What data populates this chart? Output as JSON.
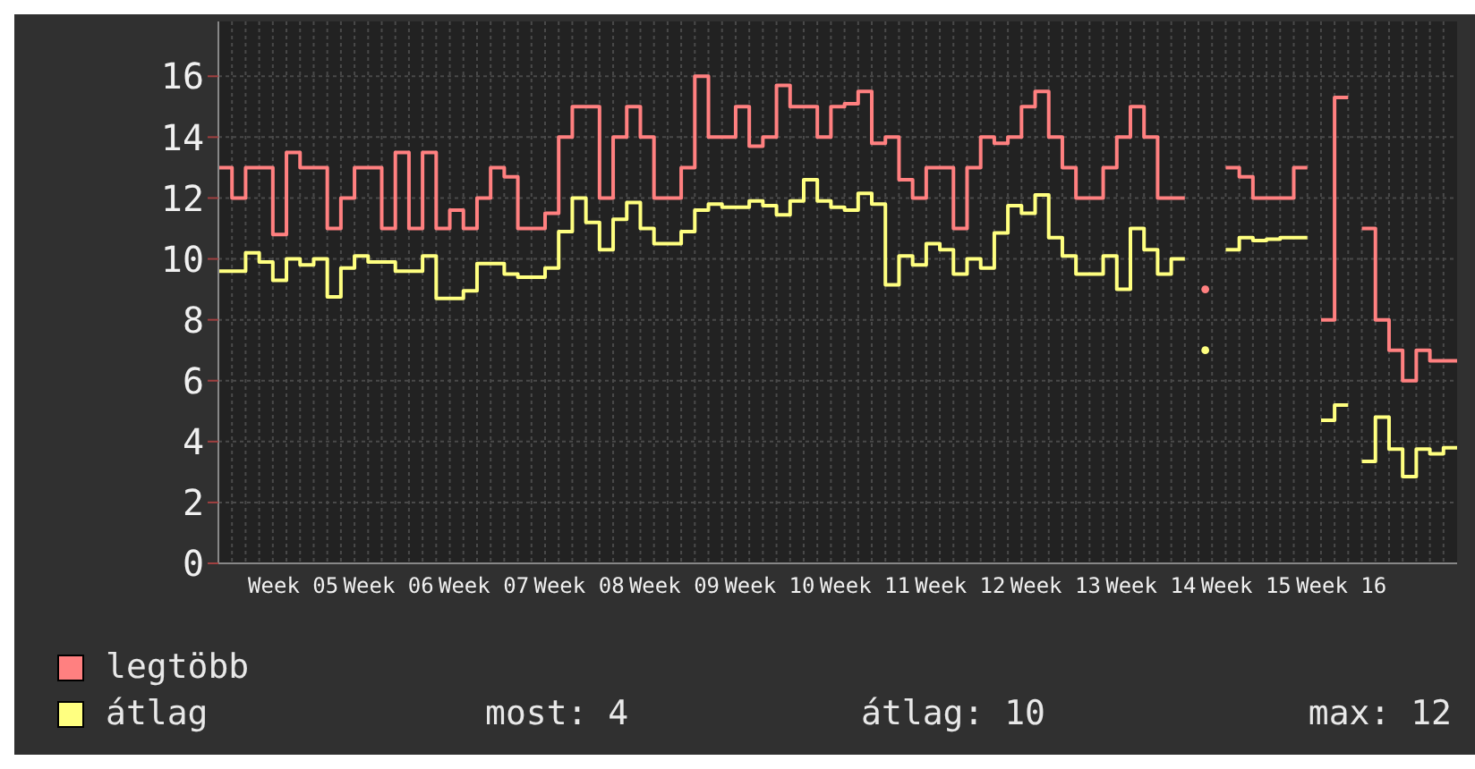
{
  "chart_data": {
    "type": "step",
    "categories": [
      null,
      null,
      null,
      null,
      null,
      "Week 05",
      null,
      null,
      null,
      null,
      null,
      null,
      "Week 06",
      null,
      null,
      null,
      null,
      null,
      null,
      "Week 07",
      null,
      null,
      null,
      null,
      null,
      null,
      "Week 08",
      null,
      null,
      null,
      null,
      null,
      null,
      "Week 09",
      null,
      null,
      null,
      null,
      null,
      null,
      "Week 10",
      null,
      null,
      null,
      null,
      null,
      null,
      "Week 11",
      null,
      null,
      null,
      null,
      null,
      null,
      "Week 12",
      null,
      null,
      null,
      null,
      null,
      null,
      "Week 13",
      null,
      null,
      null,
      null,
      null,
      null,
      "Week 14",
      null,
      null,
      null,
      null,
      null,
      null,
      "Week 15",
      null,
      null,
      null,
      null,
      null,
      null,
      "Week 16",
      null,
      null,
      null,
      null,
      null,
      null,
      null,
      null
    ],
    "series": [
      {
        "name": "legtöbb",
        "color": "#ff8080",
        "values": [
          13,
          12,
          13,
          13,
          10.8,
          13.5,
          13,
          13,
          11,
          12,
          13,
          13,
          11,
          13.5,
          11,
          13.5,
          11,
          11.6,
          11,
          12,
          13,
          12.7,
          11,
          11,
          11.5,
          14,
          15,
          15,
          12,
          14,
          15,
          14,
          12,
          12,
          13,
          16,
          14,
          14,
          15,
          13.7,
          14,
          15.7,
          15,
          15,
          14,
          15,
          15.1,
          15.5,
          13.8,
          14,
          12.6,
          12,
          13,
          13,
          11,
          13,
          14,
          13.8,
          14,
          15,
          15.5,
          14,
          13,
          12,
          12,
          13,
          14,
          15,
          14,
          12,
          12,
          null,
          9,
          null,
          13,
          12.7,
          12,
          12,
          12,
          13,
          null,
          8,
          15.3,
          null,
          11,
          8,
          7,
          6,
          7,
          6.65,
          6.65
        ]
      },
      {
        "name": "átlag",
        "color": "#ffff80",
        "values": [
          9.6,
          9.6,
          10.2,
          9.9,
          9.3,
          10.0,
          9.8,
          10.0,
          8.75,
          9.7,
          10.1,
          9.9,
          9.9,
          9.6,
          9.6,
          10.1,
          8.7,
          8.7,
          8.95,
          9.85,
          9.85,
          9.5,
          9.4,
          9.4,
          9.7,
          10.9,
          12.0,
          11.2,
          10.3,
          11.3,
          11.85,
          11.0,
          10.5,
          10.5,
          10.9,
          11.6,
          11.8,
          11.7,
          11.7,
          11.9,
          11.75,
          11.45,
          11.9,
          12.6,
          11.9,
          11.7,
          11.6,
          12.15,
          11.8,
          9.15,
          10.1,
          9.8,
          10.5,
          10.3,
          9.5,
          10.0,
          9.7,
          10.85,
          11.75,
          11.5,
          12.1,
          10.7,
          10.1,
          9.5,
          9.5,
          10.1,
          9.0,
          11.0,
          10.3,
          9.5,
          10.0,
          null,
          7.0,
          null,
          10.3,
          10.7,
          10.6,
          10.65,
          10.7,
          10.7,
          null,
          4.7,
          5.2,
          null,
          3.35,
          4.8,
          3.75,
          2.85,
          3.75,
          3.6,
          3.8
        ]
      }
    ],
    "ylim": [
      0,
      17.8
    ],
    "yticks": [
      0,
      2,
      4,
      6,
      8,
      10,
      12,
      14,
      16
    ],
    "grid": true,
    "legend": "bottom left",
    "annotations": [
      "most: 4",
      "átlag: 10",
      "max: 12"
    ]
  }
}
